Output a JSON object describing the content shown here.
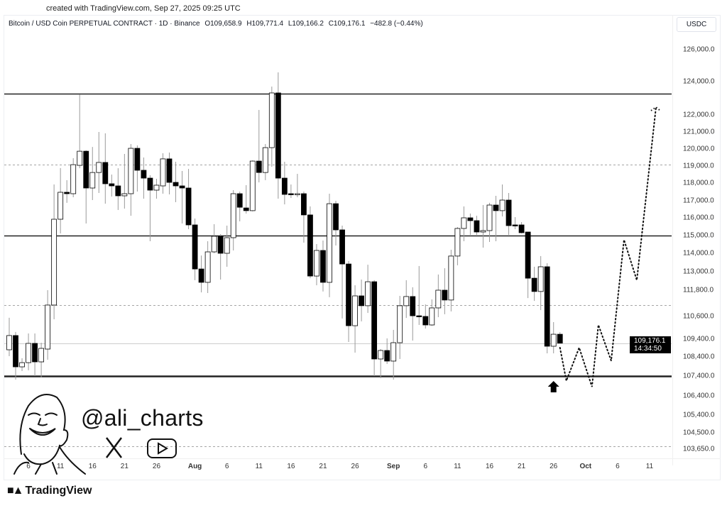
{
  "header": {
    "created": "created with TradingView.com, Sep 27, 2025 09:25 UTC",
    "symbol": "Bitcoin / USD Coin PERPETUAL CONTRACT · 1D · Binance",
    "open": "O109,658.9",
    "high": "H109,771.4",
    "low": "L109,166.2",
    "close": "C109,176.1",
    "change": "−482.8 (−0.44%)",
    "currency": "USDC"
  },
  "price_tag": {
    "price": "109,176.1",
    "countdown": "14:34:50"
  },
  "watermark": {
    "handle": "@ali_charts",
    "icons": [
      "avatar-portrait",
      "x-logo-icon",
      "youtube-icon"
    ]
  },
  "footer": {
    "brand": "TradingView",
    "logo": "17"
  },
  "chart_data": {
    "type": "candlestick",
    "title": "",
    "xlabel": "",
    "ylabel": "",
    "colors": {
      "up": "#ffffff",
      "down": "#000000",
      "wick": "#9a9a9a",
      "outline": "#000000"
    },
    "y_ticks": [
      "126,000.0",
      "124,000.0",
      "122,000.0",
      "121,000.0",
      "120,000.0",
      "119,000.0",
      "118,000.0",
      "117,000.0",
      "116,000.0",
      "115,000.0",
      "114,000.0",
      "113,000.0",
      "111,800.0",
      "110,600.0",
      "109,400.0",
      "108,400.0",
      "107,400.0",
      "106,400.0",
      "105,400.0",
      "104,500.0",
      "103,650.0"
    ],
    "x_ticks": [
      {
        "label": "6",
        "date": "2025-07-06"
      },
      {
        "label": "11",
        "date": "2025-07-11"
      },
      {
        "label": "16",
        "date": "2025-07-16"
      },
      {
        "label": "21",
        "date": "2025-07-21"
      },
      {
        "label": "26",
        "date": "2025-07-26"
      },
      {
        "label": "Aug",
        "date": "2025-08-01",
        "bold": true
      },
      {
        "label": "6",
        "date": "2025-08-06"
      },
      {
        "label": "11",
        "date": "2025-08-11"
      },
      {
        "label": "16",
        "date": "2025-08-16"
      },
      {
        "label": "21",
        "date": "2025-08-21"
      },
      {
        "label": "26",
        "date": "2025-08-26"
      },
      {
        "label": "Sep",
        "date": "2025-09-01",
        "bold": true
      },
      {
        "label": "6",
        "date": "2025-09-06"
      },
      {
        "label": "11",
        "date": "2025-09-11"
      },
      {
        "label": "16",
        "date": "2025-09-16"
      },
      {
        "label": "21",
        "date": "2025-09-21"
      },
      {
        "label": "26",
        "date": "2025-09-26"
      },
      {
        "label": "Oct",
        "date": "2025-10-01",
        "bold": true
      },
      {
        "label": "6",
        "date": "2025-10-06"
      },
      {
        "label": "11",
        "date": "2025-10-11"
      }
    ],
    "candles_fields": [
      "date",
      "open",
      "high",
      "low",
      "close"
    ],
    "candles": [
      [
        "2025-07-03",
        108800,
        110530,
        108440,
        109590
      ],
      [
        "2025-07-04",
        109590,
        109780,
        107220,
        107880
      ],
      [
        "2025-07-05",
        107880,
        108330,
        107660,
        108100
      ],
      [
        "2025-07-06",
        108100,
        109700,
        107700,
        109160
      ],
      [
        "2025-07-07",
        109160,
        109700,
        107400,
        108140
      ],
      [
        "2025-07-08",
        108140,
        109200,
        107330,
        108880
      ],
      [
        "2025-07-09",
        108840,
        111800,
        108250,
        111120
      ],
      [
        "2025-07-10",
        111120,
        117920,
        110450,
        115920
      ],
      [
        "2025-07-11",
        115920,
        118880,
        115120,
        117480
      ],
      [
        "2025-07-12",
        117480,
        118170,
        116880,
        117400
      ],
      [
        "2025-07-13",
        117400,
        119460,
        117200,
        119080
      ],
      [
        "2025-07-14",
        119040,
        123230,
        118870,
        119870
      ],
      [
        "2025-07-15",
        119870,
        119920,
        115680,
        117720
      ],
      [
        "2025-07-16",
        117720,
        120120,
        117040,
        118620
      ],
      [
        "2025-07-17",
        118620,
        121000,
        117440,
        119210
      ],
      [
        "2025-07-18",
        119210,
        120920,
        116830,
        117960
      ],
      [
        "2025-07-19",
        117960,
        118500,
        117240,
        117840
      ],
      [
        "2025-07-20",
        117840,
        118870,
        116460,
        117280
      ],
      [
        "2025-07-21",
        117280,
        119710,
        116540,
        117400
      ],
      [
        "2025-07-22",
        117400,
        120290,
        116120,
        120040
      ],
      [
        "2025-07-23",
        120040,
        120210,
        117520,
        118750
      ],
      [
        "2025-07-24",
        118750,
        119500,
        117120,
        118290
      ],
      [
        "2025-07-25",
        118290,
        118460,
        114680,
        117600
      ],
      [
        "2025-07-26",
        117600,
        118250,
        117120,
        117880
      ],
      [
        "2025-07-27",
        117840,
        119750,
        117400,
        119420
      ],
      [
        "2025-07-28",
        119420,
        119790,
        117360,
        118040
      ],
      [
        "2025-07-29",
        118040,
        119250,
        116920,
        117840
      ],
      [
        "2025-07-30",
        117840,
        118710,
        115680,
        117720
      ],
      [
        "2025-07-31",
        117720,
        118830,
        115360,
        115600
      ],
      [
        "2025-08-01",
        115600,
        115960,
        112450,
        113150
      ],
      [
        "2025-08-02",
        113150,
        113880,
        111700,
        112310
      ],
      [
        "2025-08-03",
        112310,
        114680,
        111670,
        114080
      ],
      [
        "2025-08-04",
        114080,
        115640,
        114000,
        114960
      ],
      [
        "2025-08-05",
        114960,
        115080,
        112490,
        114000
      ],
      [
        "2025-08-06",
        114000,
        115560,
        113270,
        114880
      ],
      [
        "2025-08-07",
        114880,
        117600,
        114160,
        117400
      ],
      [
        "2025-08-08",
        117400,
        117520,
        115800,
        116620
      ],
      [
        "2025-08-09",
        116580,
        117880,
        116250,
        116420
      ],
      [
        "2025-08-10",
        116420,
        119330,
        116380,
        119290
      ],
      [
        "2025-08-11",
        119290,
        122300,
        118040,
        118620
      ],
      [
        "2025-08-12",
        118620,
        120290,
        118170,
        120080
      ],
      [
        "2025-08-13",
        120080,
        123700,
        118960,
        123320
      ],
      [
        "2025-08-14",
        123320,
        124580,
        117120,
        118290
      ],
      [
        "2025-08-15",
        118290,
        119250,
        116790,
        117360
      ],
      [
        "2025-08-16",
        117400,
        117920,
        117160,
        117360
      ],
      [
        "2025-08-17",
        117360,
        118540,
        117200,
        117400
      ],
      [
        "2025-08-18",
        117400,
        117520,
        114600,
        116170
      ],
      [
        "2025-08-19",
        116170,
        116670,
        112580,
        112720
      ],
      [
        "2025-08-20",
        112720,
        114520,
        112120,
        114160
      ],
      [
        "2025-08-21",
        114160,
        114720,
        111740,
        112310
      ],
      [
        "2025-08-22",
        112310,
        117400,
        111480,
        116830
      ],
      [
        "2025-08-23",
        116830,
        117000,
        114440,
        115320
      ],
      [
        "2025-08-24",
        115320,
        115560,
        110490,
        113420
      ],
      [
        "2025-08-25",
        113420,
        113580,
        109240,
        110110
      ],
      [
        "2025-08-26",
        110110,
        112120,
        108640,
        111540
      ],
      [
        "2025-08-27",
        111540,
        112490,
        110340,
        111090
      ],
      [
        "2025-08-28",
        111090,
        113380,
        110760,
        112350
      ],
      [
        "2025-08-29",
        112350,
        112450,
        107400,
        108290
      ],
      [
        "2025-08-30",
        108290,
        108840,
        107290,
        108760
      ],
      [
        "2025-08-31",
        108760,
        109440,
        108030,
        108180
      ],
      [
        "2025-09-01",
        108180,
        109890,
        107220,
        109200
      ],
      [
        "2025-09-02",
        109200,
        111540,
        108290,
        111090
      ],
      [
        "2025-09-03",
        111090,
        112450,
        110520,
        111510
      ],
      [
        "2025-09-04",
        111510,
        111990,
        109320,
        110630
      ],
      [
        "2025-09-05",
        110630,
        113310,
        110150,
        110620
      ],
      [
        "2025-09-06",
        110600,
        111150,
        109960,
        110150
      ],
      [
        "2025-09-07",
        110150,
        111380,
        110100,
        110990
      ],
      [
        "2025-09-08",
        110990,
        112820,
        110560,
        111800
      ],
      [
        "2025-09-09",
        111800,
        113190,
        110700,
        111350
      ],
      [
        "2025-09-10",
        111350,
        114200,
        110830,
        113850
      ],
      [
        "2025-09-11",
        113850,
        115480,
        113350,
        115400
      ],
      [
        "2025-09-12",
        115400,
        116670,
        114680,
        116000
      ],
      [
        "2025-09-13",
        116000,
        116250,
        115040,
        115840
      ],
      [
        "2025-09-14",
        115840,
        116120,
        115040,
        115200
      ],
      [
        "2025-09-15",
        115200,
        116750,
        114320,
        115280
      ],
      [
        "2025-09-16",
        115280,
        116880,
        114640,
        116750
      ],
      [
        "2025-09-17",
        116750,
        117280,
        114680,
        116420
      ],
      [
        "2025-09-18",
        116420,
        117920,
        116080,
        117040
      ],
      [
        "2025-09-19",
        117040,
        117440,
        115040,
        115560
      ],
      [
        "2025-09-20",
        115600,
        116040,
        115360,
        115560
      ],
      [
        "2025-09-21",
        115600,
        115760,
        115120,
        115160
      ],
      [
        "2025-09-22",
        115200,
        115200,
        111440,
        112580
      ],
      [
        "2025-09-23",
        112580,
        113270,
        111310,
        111740
      ],
      [
        "2025-09-24",
        111740,
        113850,
        110890,
        113270
      ],
      [
        "2025-09-25",
        113270,
        113460,
        108600,
        109000
      ],
      [
        "2025-09-26",
        109000,
        110300,
        108600,
        109660
      ],
      [
        "2025-09-27",
        109658.9,
        109771.4,
        109166.2,
        109176.1
      ]
    ],
    "levels": [
      {
        "price": 123280,
        "style": "solid"
      },
      {
        "price": 119080,
        "style": "dashed"
      },
      {
        "price": 115000,
        "style": "solid"
      },
      {
        "price": 111120,
        "style": "dashed"
      },
      {
        "price": 107400,
        "style": "solid-thick"
      },
      {
        "price": 103800,
        "style": "dashed"
      },
      {
        "price": 109176.1,
        "style": "last-price"
      }
    ],
    "projection": [
      [
        "2025-09-27",
        108920
      ],
      [
        "2025-09-28",
        107160
      ],
      [
        "2025-09-30",
        108920
      ],
      [
        "2025-10-02",
        106860
      ],
      [
        "2025-10-03",
        110150
      ],
      [
        "2025-10-05",
        108200
      ],
      [
        "2025-10-07",
        114760
      ],
      [
        "2025-10-09",
        112450
      ],
      [
        "2025-10-12",
        122470
      ]
    ],
    "arrow_marker": {
      "date": "2025-09-26",
      "direction": "up"
    }
  }
}
